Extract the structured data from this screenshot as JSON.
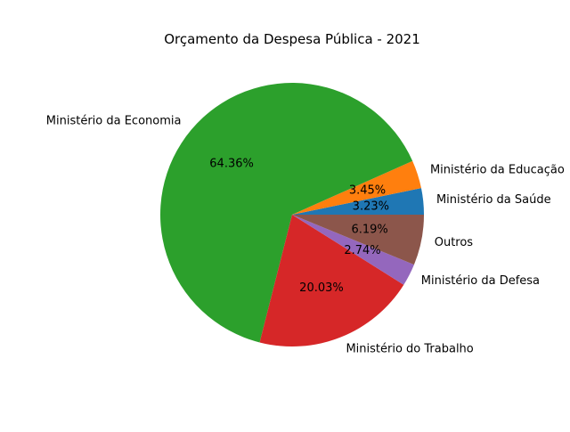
{
  "chart_data": {
    "type": "pie",
    "title": "Orçamento da Despesa Pública - 2021",
    "start_angle_deg": 0,
    "direction": "counterclockwise",
    "slices": [
      {
        "label": "Ministério da Saúde",
        "value": 3.23,
        "pct_label": "3.23%",
        "color": "#1f77b4"
      },
      {
        "label": "Ministério da Educação",
        "value": 3.45,
        "pct_label": "3.45%",
        "color": "#ff7f0e"
      },
      {
        "label": "Ministério da Economia",
        "value": 64.36,
        "pct_label": "64.36%",
        "color": "#2ca02c"
      },
      {
        "label": "Ministério do Trabalho",
        "value": 20.03,
        "pct_label": "20.03%",
        "color": "#d62728"
      },
      {
        "label": "Ministério da Defesa",
        "value": 2.74,
        "pct_label": "2.74%",
        "color": "#9467bd"
      },
      {
        "label": "Outros",
        "value": 6.19,
        "pct_label": "6.19%",
        "color": "#8c564b"
      }
    ]
  }
}
